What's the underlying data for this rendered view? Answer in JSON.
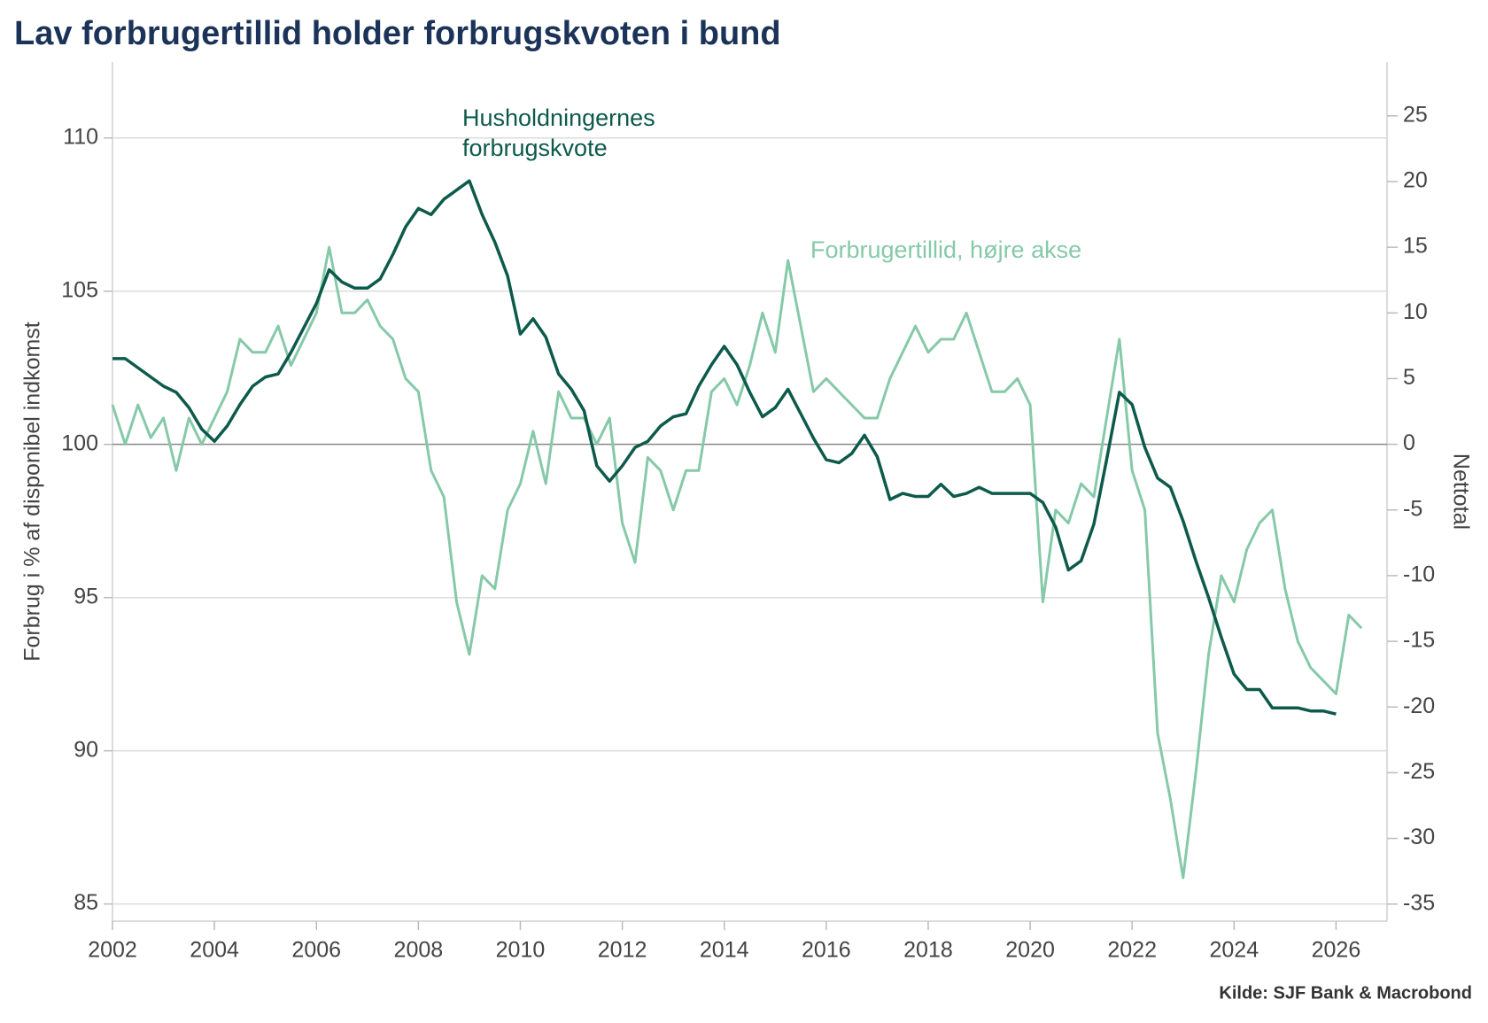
{
  "chart_data": {
    "type": "line",
    "title": "Lav forbrugertillid holder forbrugskvoten i bund",
    "y_label": "Forbrug i % af disponibel indkomst",
    "y2_label": "Nettotal",
    "source": "Kilde: SJF Bank & Macrobond",
    "annotations": [
      {
        "lines": [
          "Husholdningernes",
          "forbrugskvote"
        ]
      },
      {
        "lines": [
          "Forbrugertillid, højre akse"
        ]
      }
    ],
    "x": [
      2002,
      2002.25,
      2002.5,
      2002.75,
      2003,
      2003.25,
      2003.5,
      2003.75,
      2004,
      2004.25,
      2004.5,
      2004.75,
      2005,
      2005.25,
      2005.5,
      2005.75,
      2006,
      2006.25,
      2006.5,
      2006.75,
      2007,
      2007.25,
      2007.5,
      2007.75,
      2008,
      2008.25,
      2008.5,
      2008.75,
      2009,
      2009.25,
      2009.5,
      2009.75,
      2010,
      2010.25,
      2010.5,
      2010.75,
      2011,
      2011.25,
      2011.5,
      2011.75,
      2012,
      2012.25,
      2012.5,
      2012.75,
      2013,
      2013.25,
      2013.5,
      2013.75,
      2014,
      2014.25,
      2014.5,
      2014.75,
      2015,
      2015.25,
      2015.5,
      2015.75,
      2016,
      2016.25,
      2016.5,
      2016.75,
      2017,
      2017.25,
      2017.5,
      2017.75,
      2018,
      2018.25,
      2018.5,
      2018.75,
      2019,
      2019.25,
      2019.5,
      2019.75,
      2020,
      2020.25,
      2020.5,
      2020.75,
      2021,
      2021.25,
      2021.5,
      2021.75,
      2022,
      2022.25,
      2022.5,
      2022.75,
      2023,
      2023.25,
      2023.5,
      2023.75,
      2024,
      2024.25,
      2024.5,
      2024.75,
      2025,
      2025.25,
      2025.5,
      2025.75,
      2026,
      2026.25,
      2026.5
    ],
    "series": [
      {
        "color": "#0d5a4b",
        "values": [
          102.8,
          102.8,
          102.5,
          102.2,
          101.9,
          101.7,
          101.2,
          100.5,
          100.1,
          100.6,
          101.3,
          101.9,
          102.2,
          102.3,
          103.0,
          103.8,
          104.6,
          105.7,
          105.3,
          105.1,
          105.1,
          105.4,
          106.2,
          107.1,
          107.7,
          107.5,
          108.0,
          108.3,
          108.6,
          107.5,
          106.6,
          105.5,
          103.6,
          104.1,
          103.5,
          102.3,
          101.8,
          101.1,
          99.3,
          98.8,
          99.3,
          99.9,
          100.1,
          100.6,
          100.9,
          101.0,
          101.9,
          102.6,
          103.2,
          102.6,
          101.7,
          100.9,
          101.2,
          101.8,
          101.0,
          100.2,
          99.5,
          99.4,
          99.7,
          100.3,
          99.6,
          98.2,
          98.4,
          98.3,
          98.3,
          98.7,
          98.3,
          98.4,
          98.6,
          98.4,
          98.4,
          98.4,
          98.4,
          98.1,
          97.3,
          95.9,
          96.2,
          97.4,
          99.5,
          101.7,
          101.3,
          99.9,
          98.9,
          98.6,
          97.5,
          96.2,
          95.0,
          93.7,
          92.5,
          92.0,
          92.0,
          91.4,
          91.4,
          91.4,
          91.3,
          91.3,
          91.2,
          null,
          null
        ]
      },
      {
        "color": "#86c9a8",
        "axis": "y2",
        "values": [
          3,
          0,
          3,
          0.5,
          2,
          -2,
          2,
          0,
          2,
          4,
          8,
          7,
          7,
          9,
          6,
          8,
          10,
          15,
          10,
          10,
          11,
          9,
          8,
          5,
          4,
          -2,
          -4,
          -12,
          -16,
          -10,
          -11,
          -5,
          -3,
          1,
          -3,
          4,
          2,
          2,
          0,
          2,
          -6,
          -9,
          -1,
          -2,
          -5,
          -2,
          -2,
          4,
          5,
          3,
          6,
          10,
          7,
          14,
          9,
          4,
          5,
          4,
          3,
          2,
          2,
          5,
          7,
          9,
          7,
          8,
          8,
          10,
          7,
          4,
          4,
          5,
          3,
          -12,
          -5,
          -6,
          -3,
          -4,
          2,
          8,
          -2,
          -5,
          -22,
          -27,
          -33,
          -25,
          -16,
          -10,
          -12,
          -8,
          -6,
          -5,
          -11,
          -15,
          -17,
          -18,
          -19,
          -13,
          -14
        ]
      }
    ],
    "xlim": [
      2002,
      2027
    ],
    "xticks": [
      2002,
      2004,
      2006,
      2008,
      2010,
      2012,
      2014,
      2016,
      2018,
      2020,
      2022,
      2024,
      2026
    ],
    "ylim": [
      84.44,
      112.48
    ],
    "yticks": [
      85,
      90,
      95,
      100,
      105,
      110
    ],
    "y2lim": [
      -36.3,
      29.1
    ],
    "y2ticks": [
      -35,
      -30,
      -25,
      -20,
      -15,
      -10,
      -5,
      0,
      5,
      10,
      15,
      20,
      25
    ],
    "grid": true,
    "zero_line_y2": 0
  }
}
